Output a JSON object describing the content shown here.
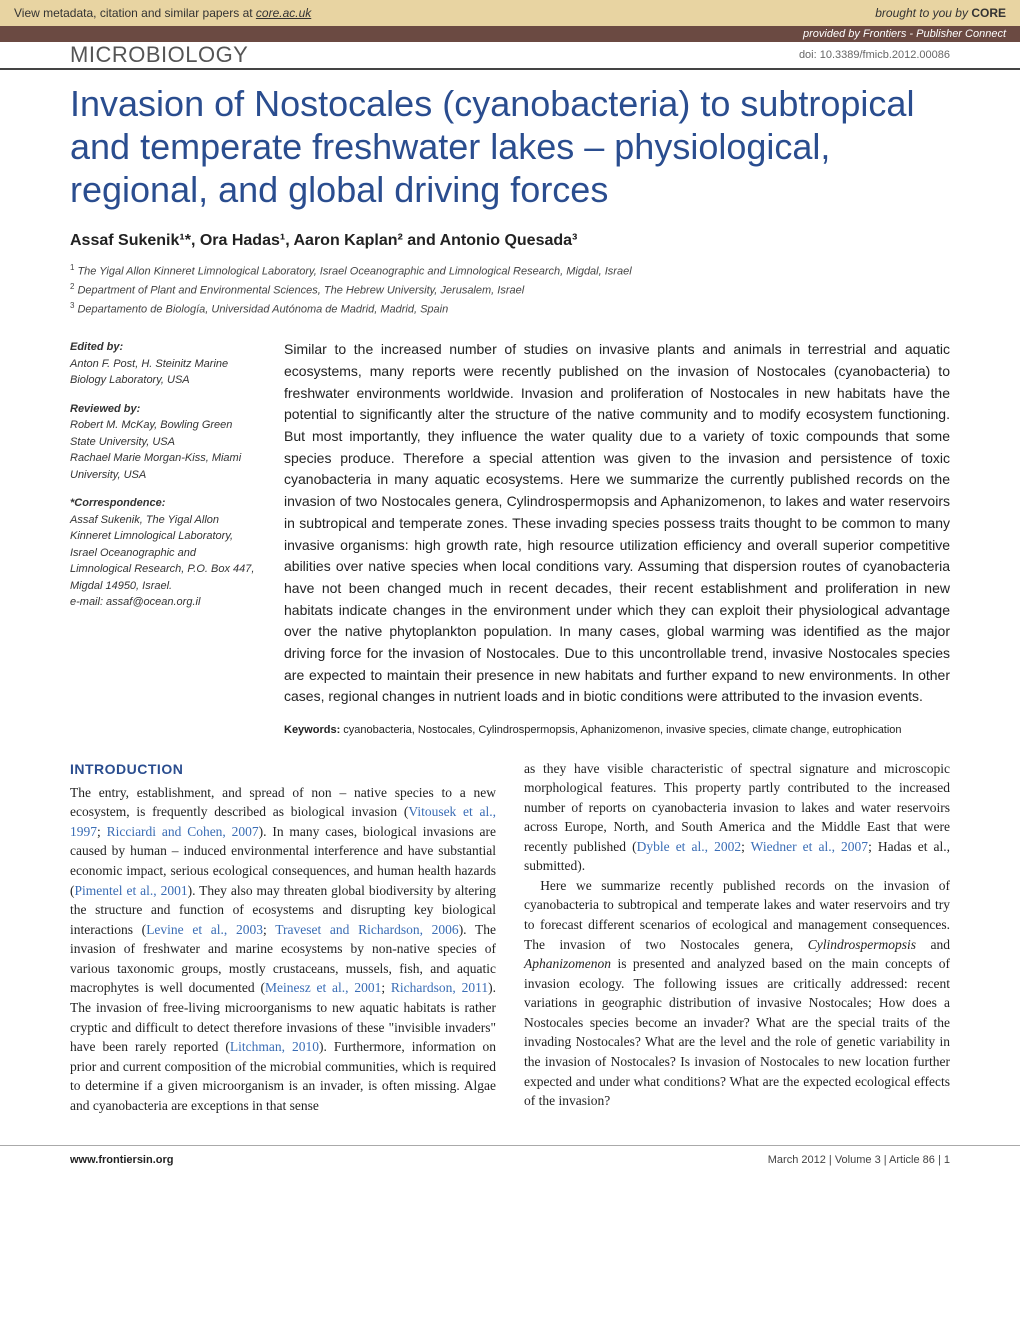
{
  "banner": {
    "prefix": "View metadata, citation and similar papers at ",
    "core": "core.ac.uk",
    "brought": "brought to you by ",
    "core_logo": "CORE",
    "provided": "provided by Frontiers - Publisher Connect"
  },
  "journal": {
    "name": "MICROBIOLOGY",
    "doi": "doi: 10.3389/fmicb.2012.00086"
  },
  "title": "Invasion of Nostocales (cyanobacteria) to subtropical and temperate freshwater lakes – physiological, regional, and global driving forces",
  "authors": "Assaf Sukenik¹*, Ora Hadas¹, Aaron Kaplan² and Antonio Quesada³",
  "affiliations": [
    {
      "num": "1",
      "text": "The Yigal Allon Kinneret Limnological Laboratory, Israel Oceanographic and Limnological Research, Migdal, Israel"
    },
    {
      "num": "2",
      "text": "Department of Plant and Environmental Sciences, The Hebrew University, Jerusalem, Israel"
    },
    {
      "num": "3",
      "text": "Departamento de Biología, Universidad Autónoma de Madrid, Madrid, Spain"
    }
  ],
  "sidebar": {
    "edited_label": "Edited by:",
    "edited_name": "Anton F. Post, H. Steinitz Marine Biology Laboratory, USA",
    "reviewed_label": "Reviewed by:",
    "reviewed_1": "Robert M. McKay, Bowling Green State University, USA",
    "reviewed_2": "Rachael Marie Morgan-Kiss, Miami University, USA",
    "corr_label": "*Correspondence:",
    "corr_text": "Assaf Sukenik, The Yigal Allon Kinneret Limnological Laboratory, Israel Oceanographic and Limnological Research, P.O. Box 447, Migdal 14950, Israel.",
    "corr_email": "e-mail: assaf@ocean.org.il"
  },
  "abstract": "Similar to the increased number of studies on invasive plants and animals in terrestrial and aquatic ecosystems, many reports were recently published on the invasion of Nostocales (cyanobacteria) to freshwater environments worldwide. Invasion and proliferation of Nostocales in new habitats have the potential to significantly alter the structure of the native community and to modify ecosystem functioning. But most importantly, they influence the water quality due to a variety of toxic compounds that some species produce. Therefore a special attention was given to the invasion and persistence of toxic cyanobacteria in many aquatic ecosystems. Here we summarize the currently published records on the invasion of two Nostocales genera, Cylindrospermopsis and Aphanizomenon, to lakes and water reservoirs in subtropical and temperate zones. These invading species possess traits thought to be common to many invasive organisms: high growth rate, high resource utilization efficiency and overall superior competitive abilities over native species when local conditions vary. Assuming that dispersion routes of cyanobacteria have not been changed much in recent decades, their recent establishment and proliferation in new habitats indicate changes in the environment under which they can exploit their physiological advantage over the native phytoplankton population. In many cases, global warming was identified as the major driving force for the invasion of Nostocales. Due to this uncontrollable trend, invasive Nostocales species are expected to maintain their presence in new habitats and further expand to new environments. In other cases, regional changes in nutrient loads and in biotic conditions were attributed to the invasion events.",
  "keywords_label": "Keywords: ",
  "keywords": "cyanobacteria, Nostocales, Cylindrospermopsis, Aphanizomenon, invasive species, climate change, eutrophication",
  "intro_heading": "INTRODUCTION",
  "intro_col1_a": "The entry, establishment, and spread of non – native species to a new ecosystem, is frequently described as biological invasion (",
  "intro_col1_ref1": "Vitousek et al., 1997",
  "intro_col1_b": "; ",
  "intro_col1_ref2": "Ricciardi and Cohen, 2007",
  "intro_col1_c": "). In many cases, biological invasions are caused by human – induced environmental interference and have substantial economic impact, serious ecological consequences, and human health hazards (",
  "intro_col1_ref3": "Pimentel et al., 2001",
  "intro_col1_d": "). They also may threaten global biodiversity by altering the structure and function of ecosystems and disrupting key biological interactions (",
  "intro_col1_ref4": "Levine et al., 2003",
  "intro_col1_e": "; ",
  "intro_col1_ref5": "Traveset and Richardson, 2006",
  "intro_col1_f": "). The invasion of freshwater and marine ecosystems by non-native species of various taxonomic groups, mostly crustaceans, mussels, fish, and aquatic macrophytes is well documented (",
  "intro_col1_ref6": "Meinesz et al., 2001",
  "intro_col1_g": "; ",
  "intro_col1_ref7": "Richardson, 2011",
  "intro_col1_h": "). The invasion of free-living microorganisms to new aquatic habitats is rather cryptic and difficult to detect therefore invasions of these \"invisible invaders\" have been rarely reported (",
  "intro_col1_ref8": "Litchman, 2010",
  "intro_col1_i": "). Furthermore, information on prior and current composition of the microbial communities, which is required to determine if a given microorganism is an invader, is often missing. Algae and cyanobacteria are exceptions in that sense",
  "intro_col2_a": "as they have visible characteristic of spectral signature and microscopic morphological features. This property partly contributed to the increased number of reports on cyanobacteria invasion to lakes and water reservoirs across Europe, North, and South America and the Middle East that were recently published (",
  "intro_col2_ref1": "Dyble et al., 2002",
  "intro_col2_b": "; ",
  "intro_col2_ref2": "Wiedner et al., 2007",
  "intro_col2_c": "; Hadas et al., submitted).",
  "intro_col2_p2_a": "Here we summarize recently published records on the invasion of cyanobacteria to subtropical and temperate lakes and water reservoirs and try to forecast different scenarios of ecological and management consequences. The invasion of two Nostocales genera, ",
  "intro_col2_p2_it1": "Cylindrospermopsis",
  "intro_col2_p2_b": " and ",
  "intro_col2_p2_it2": "Aphanizomenon",
  "intro_col2_p2_c": " is presented and analyzed based on the main concepts of invasion ecology. The following issues are critically addressed: recent variations in geographic distribution of invasive Nostocales; How does a Nostocales species become an invader? What are the special traits of the invading Nostocales? What are the level and the role of genetic variability in the invasion of Nostocales? Is invasion of Nostocales to new location further expected and under what conditions? What are the expected ecological effects of the invasion?",
  "footer": {
    "left": "www.frontiersin.org",
    "right": "March 2012 | Volume 3 | Article 86 | 1"
  },
  "colors": {
    "title": "#2a4d8f",
    "link": "#3a6db5",
    "banner_bg": "#e8d4a2",
    "provided_bg": "#6b4a42"
  }
}
